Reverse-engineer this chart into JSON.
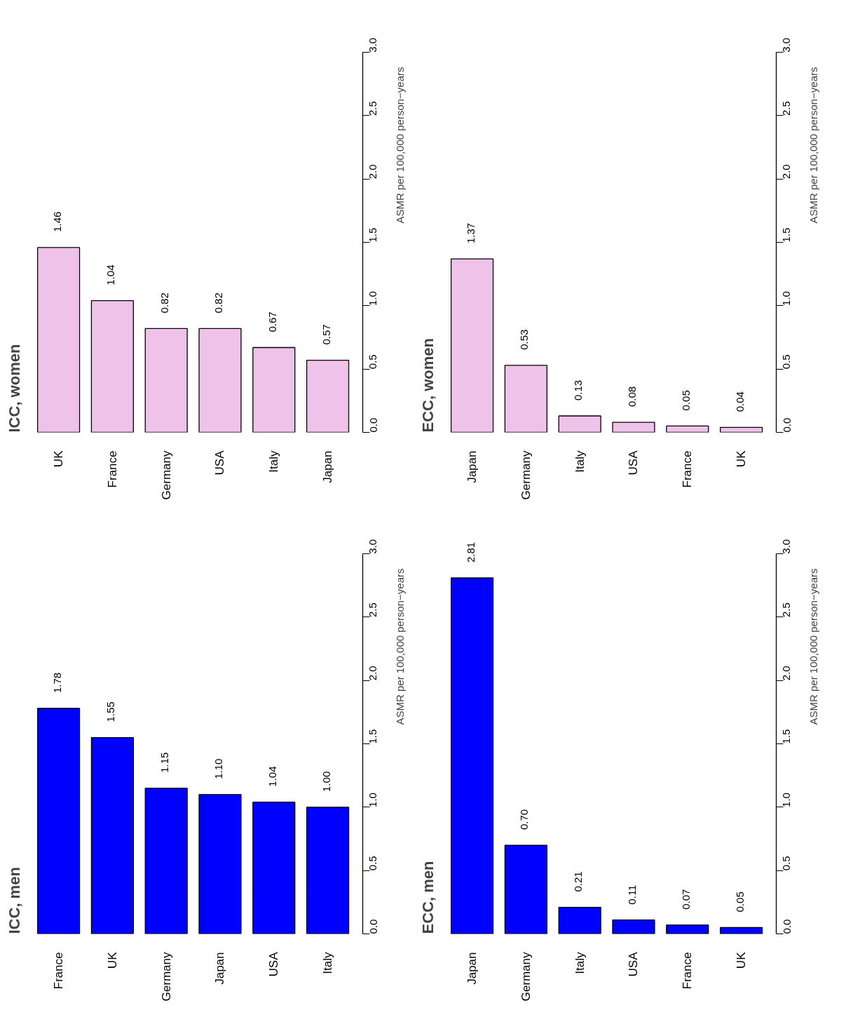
{
  "chart_data": [
    {
      "type": "bar",
      "title": "ICC, women",
      "ylabel": "ASMR per 100,000 person−years",
      "categories": [
        "UK",
        "France",
        "Germany",
        "USA",
        "Italy",
        "Japan"
      ],
      "values": [
        1.46,
        1.04,
        0.82,
        0.82,
        0.67,
        0.57
      ],
      "value_labels": [
        "1.46",
        "1.04",
        "0.82",
        "0.82",
        "0.67",
        "0.57"
      ],
      "color": "#efc3e9",
      "ylim": [
        0,
        3
      ],
      "yticks": [
        {
          "value": 0,
          "label": "0.0"
        },
        {
          "value": 0.5,
          "label": "0.5"
        },
        {
          "value": 1,
          "label": "1.0"
        },
        {
          "value": 1.5,
          "label": "1.5"
        },
        {
          "value": 2,
          "label": "2.0"
        },
        {
          "value": 2.5,
          "label": "2.5"
        },
        {
          "value": 3,
          "label": "3.0"
        }
      ],
      "grid": false
    },
    {
      "type": "bar",
      "title": "ECC, women",
      "ylabel": "ASMR per 100,000 person−years",
      "categories": [
        "Japan",
        "Germany",
        "Italy",
        "USA",
        "France",
        "UK"
      ],
      "values": [
        1.37,
        0.53,
        0.13,
        0.08,
        0.05,
        0.04
      ],
      "value_labels": [
        "1.37",
        "0.53",
        "0.13",
        "0.08",
        "0.05",
        "0.04"
      ],
      "color": "#efc3e9",
      "ylim": [
        0,
        3
      ],
      "yticks": [
        {
          "value": 0,
          "label": "0.0"
        },
        {
          "value": 0.5,
          "label": "0.5"
        },
        {
          "value": 1,
          "label": "1.0"
        },
        {
          "value": 1.5,
          "label": "1.5"
        },
        {
          "value": 2,
          "label": "2.0"
        },
        {
          "value": 2.5,
          "label": "2.5"
        },
        {
          "value": 3,
          "label": "3.0"
        }
      ],
      "grid": false
    },
    {
      "type": "bar",
      "title": "ICC, men",
      "ylabel": "ASMR per 100,000 person−years",
      "categories": [
        "France",
        "UK",
        "Germany",
        "Japan",
        "USA",
        "Italy"
      ],
      "values": [
        1.78,
        1.55,
        1.15,
        1.1,
        1.04,
        1.0
      ],
      "value_labels": [
        "1.78",
        "1.55",
        "1.15",
        "1.10",
        "1.04",
        "1.00"
      ],
      "color": "#0000ff",
      "ylim": [
        0,
        3
      ],
      "yticks": [
        {
          "value": 0,
          "label": "0.0"
        },
        {
          "value": 0.5,
          "label": "0.5"
        },
        {
          "value": 1,
          "label": "1.0"
        },
        {
          "value": 1.5,
          "label": "1.5"
        },
        {
          "value": 2,
          "label": "2.0"
        },
        {
          "value": 2.5,
          "label": "2.5"
        },
        {
          "value": 3,
          "label": "3.0"
        }
      ],
      "grid": false
    },
    {
      "type": "bar",
      "title": "ECC, men",
      "ylabel": "ASMR per 100,000 person−years",
      "categories": [
        "Japan",
        "Germany",
        "Italy",
        "USA",
        "France",
        "UK"
      ],
      "values": [
        2.81,
        0.7,
        0.21,
        0.11,
        0.07,
        0.05
      ],
      "value_labels": [
        "2.81",
        "0.70",
        "0.21",
        "0.11",
        "0.07",
        "0.05"
      ],
      "color": "#0000ff",
      "ylim": [
        0,
        3
      ],
      "yticks": [
        {
          "value": 0,
          "label": "0.0"
        },
        {
          "value": 0.5,
          "label": "0.5"
        },
        {
          "value": 1,
          "label": "1.0"
        },
        {
          "value": 1.5,
          "label": "1.5"
        },
        {
          "value": 2,
          "label": "2.0"
        },
        {
          "value": 2.5,
          "label": "2.5"
        },
        {
          "value": 3,
          "label": "3.0"
        }
      ],
      "grid": false
    }
  ]
}
